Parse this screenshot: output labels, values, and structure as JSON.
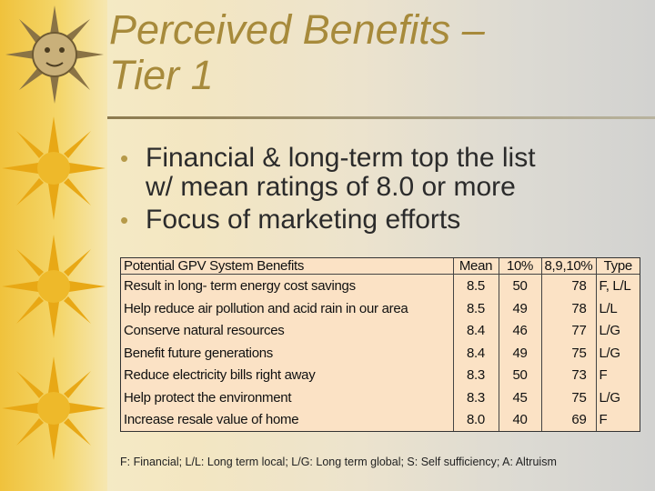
{
  "slide": {
    "title_line1": "Perceived Benefits –",
    "title_line2": "Tier 1",
    "bullets": [
      {
        "line1": "Financial & long-term top the list",
        "line2": "w/ mean ratings of 8.0 or more"
      },
      {
        "line1": "Focus of marketing efforts",
        "line2": ""
      }
    ],
    "table": {
      "headers": [
        "Potential GPV System Benefits",
        "Mean",
        "10%",
        "8,9,10%",
        "Type"
      ],
      "rows": [
        [
          "Result in long- term energy cost savings",
          "8.5",
          "50",
          "78",
          "F, L/L"
        ],
        [
          "Help reduce air pollution and acid rain in our area",
          "8.5",
          "49",
          "78",
          "L/L"
        ],
        [
          "Conserve natural resources",
          "8.4",
          "46",
          "77",
          "L/G"
        ],
        [
          "Benefit future generations",
          "8.4",
          "49",
          "75",
          "L/G"
        ],
        [
          "Reduce electricity bills right away",
          "8.3",
          "50",
          "73",
          "F"
        ],
        [
          "Help protect the environment",
          "8.3",
          "45",
          "75",
          "L/G"
        ],
        [
          "Increase resale value of home",
          "8.0",
          "40",
          "69",
          "F"
        ]
      ]
    },
    "footnote": "F: Financial;  L/L: Long term local; L/G: Long term global; S: Self sufficiency; A: Altruism",
    "colors": {
      "title": "#a78a3b",
      "strip": "#f0c23c",
      "bullet": "#b69a49",
      "table_bg": "#fbe2c5"
    },
    "icons": [
      "sun-face-icon",
      "sun-icon"
    ]
  }
}
